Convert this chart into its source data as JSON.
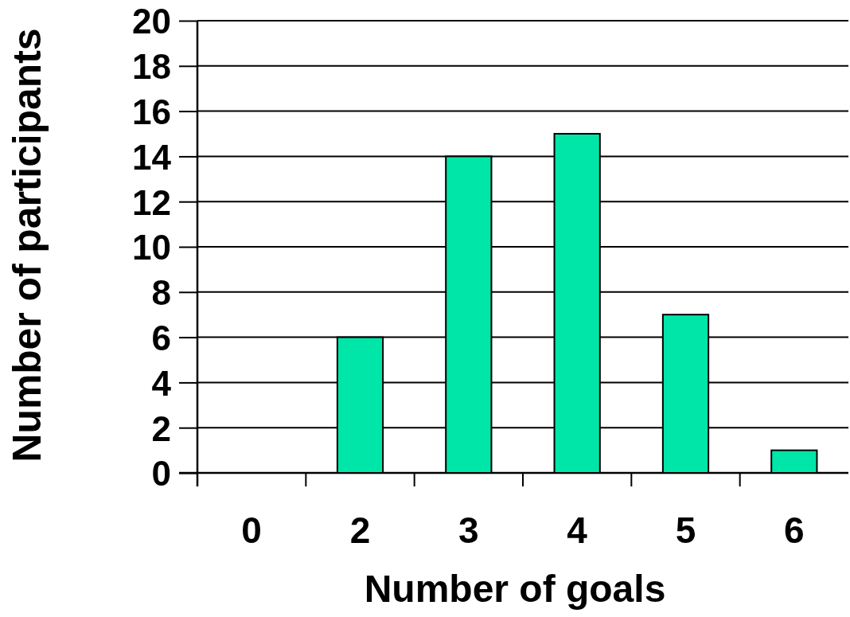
{
  "chart_data": {
    "type": "bar",
    "xlabel": "Number of goals",
    "ylabel": "Number of participants",
    "categories": [
      "0",
      "2",
      "3",
      "4",
      "5",
      "6"
    ],
    "values": [
      0,
      6,
      14,
      15,
      7,
      1
    ],
    "color": "#00e5a8",
    "ylim": [
      0,
      20
    ],
    "yticks": [
      0,
      2,
      4,
      6,
      8,
      10,
      12,
      14,
      16,
      18,
      20
    ],
    "grid": "y"
  }
}
